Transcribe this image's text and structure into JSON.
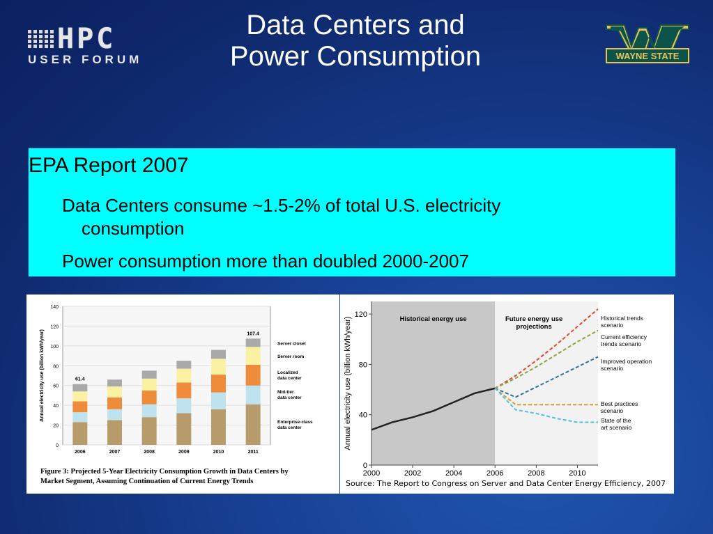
{
  "header": {
    "logo_main": "HPC",
    "logo_sub": "USER FORUM",
    "title_line1": "Data Centers and",
    "title_line2": "Power Consumption",
    "wayne_state_text": "WAYNE STATE"
  },
  "content": {
    "heading": "EPA Report 2007",
    "bullet1_line1": "Data Centers consume ~1.5-2% of total U.S. electricity",
    "bullet1_line2": "consumption",
    "bullet2": "Power consumption more than doubled 2000-2007"
  },
  "colors": {
    "background": "#173f92",
    "box": "#00ffff",
    "wayne_green": "#0c5449",
    "wayne_gold": "#e8c25a"
  },
  "chart_data": [
    {
      "type": "bar",
      "stacked": true,
      "ylabel": "Annual electricity use (billion kWh/year)",
      "ylim": [
        0,
        140
      ],
      "yticks": [
        0,
        20,
        40,
        60,
        80,
        100,
        120,
        140
      ],
      "categories": [
        "2006",
        "2007",
        "2008",
        "2009",
        "2010",
        "2011"
      ],
      "series": [
        {
          "name": "Enterprise-class data center",
          "color": "#b89b6a",
          "values": [
            23,
            25,
            28,
            32,
            36,
            41
          ]
        },
        {
          "name": "Mid-tier data center",
          "color": "#bfe3ee",
          "values": [
            10,
            11,
            13,
            15,
            17,
            19
          ]
        },
        {
          "name": "Localized data center",
          "color": "#ef8c3c",
          "values": [
            11,
            12,
            14,
            16,
            18,
            21
          ]
        },
        {
          "name": "Server room",
          "color": "#fbf1a3",
          "values": [
            10,
            11,
            12,
            14,
            16,
            18
          ]
        },
        {
          "name": "Server closet",
          "color": "#a9a9a9",
          "values": [
            7.4,
            7,
            8,
            8,
            9,
            8.4
          ]
        }
      ],
      "data_labels": {
        "2006": "61.4",
        "2011": "107.4"
      },
      "caption_line1": "Figure 3:  Projected 5-Year Electricity Consumption Growth in Data Centers by",
      "caption_line2": "Market Segment, Assuming Continuation of Current Energy Trends"
    },
    {
      "type": "line",
      "ylabel": "Annual electricity use (billion kWh/year)",
      "xlim": [
        2000,
        2011
      ],
      "ylim": [
        0,
        130
      ],
      "xticks": [
        "2000",
        "2002",
        "2004",
        "2006",
        "2008",
        "2010"
      ],
      "yticks": [
        "0",
        "40",
        "80",
        "120"
      ],
      "region_labels": {
        "historical": "Historical energy use",
        "future_line1": "Future energy use",
        "future_line2": "projections"
      },
      "historical": {
        "x": [
          2000,
          2001,
          2002,
          2003,
          2004,
          2005,
          2006
        ],
        "y": [
          28,
          34,
          38,
          43,
          50,
          57,
          61
        ]
      },
      "series": [
        {
          "name": "Historical trends scenario",
          "label_line1": "Historical trends",
          "label_line2": "scenario",
          "color": "#e3462c",
          "x": [
            2006,
            2007,
            2008,
            2009,
            2010,
            2011
          ],
          "y": [
            61,
            71,
            83,
            96,
            110,
            124
          ]
        },
        {
          "name": "Current efficiency trends scenario",
          "label_line1": "Current efficiency",
          "label_line2": "trends scenario",
          "color": "#8aa43a",
          "x": [
            2006,
            2007,
            2008,
            2009,
            2010,
            2011
          ],
          "y": [
            61,
            69,
            78,
            88,
            98,
            107
          ]
        },
        {
          "name": "Improved operation scenario",
          "label_line1": "Improved operation",
          "label_line2": "scenario",
          "color": "#2b6f9e",
          "x": [
            2006,
            2007,
            2008,
            2009,
            2010,
            2011
          ],
          "y": [
            61,
            54,
            62,
            70,
            78,
            86
          ]
        },
        {
          "name": "Best practices scenario",
          "label_line1": "Best practices",
          "label_line2": "scenario",
          "color": "#d99a2b",
          "x": [
            2006,
            2007,
            2008,
            2009,
            2010,
            2011
          ],
          "y": [
            61,
            48,
            48,
            48,
            48,
            48
          ]
        },
        {
          "name": "State of the art scenario",
          "label_line1": "State of the",
          "label_line2": "art scenario",
          "color": "#4cc2e0",
          "x": [
            2006,
            2007,
            2008,
            2009,
            2010,
            2011
          ],
          "y": [
            61,
            44,
            41,
            37,
            34,
            34
          ]
        }
      ],
      "source": "Source: The Report to Congress on Server and Data Center Energy Efficiency, 2007"
    }
  ]
}
